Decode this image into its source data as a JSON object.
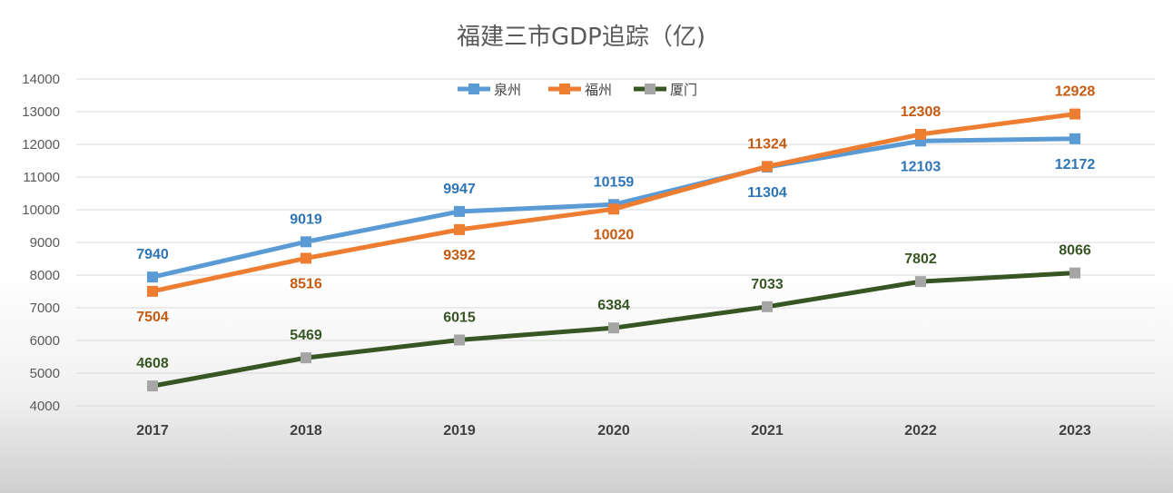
{
  "chart_data": {
    "type": "line",
    "title": "福建三市GDP追踪（亿)",
    "xlabel": "",
    "ylabel": "",
    "categories": [
      "2017",
      "2018",
      "2019",
      "2020",
      "2021",
      "2022",
      "2023"
    ],
    "ylim": [
      4000,
      14000
    ],
    "yticks": [
      "14000",
      "13000",
      "12000",
      "11000",
      "10000",
      "9000",
      "8000",
      "7000",
      "6000",
      "5000",
      "4000"
    ],
    "grid": true,
    "legend_position": "top-center",
    "series": [
      {
        "name": "泉州",
        "color": "#5b9bd5",
        "label_color": "#2e75b6",
        "values": [
          7940,
          9019,
          9947,
          10159,
          11304,
          12103,
          12172
        ],
        "label_pos": [
          "above",
          "above",
          "above",
          "above",
          "below",
          "below",
          "below"
        ]
      },
      {
        "name": "福州",
        "color": "#ed7d31",
        "label_color": "#c55a11",
        "values": [
          7504,
          8516,
          9392,
          10020,
          11324,
          12308,
          12928
        ],
        "label_pos": [
          "below",
          "below",
          "below",
          "below",
          "above",
          "above",
          "above"
        ]
      },
      {
        "name": "厦门",
        "color": "#375623",
        "marker_color": "#a5a5a5",
        "label_color": "#375623",
        "values": [
          4608,
          5469,
          6015,
          6384,
          7033,
          7802,
          8066
        ],
        "label_pos": [
          "above",
          "above",
          "above",
          "above",
          "above",
          "above",
          "above"
        ]
      }
    ]
  }
}
